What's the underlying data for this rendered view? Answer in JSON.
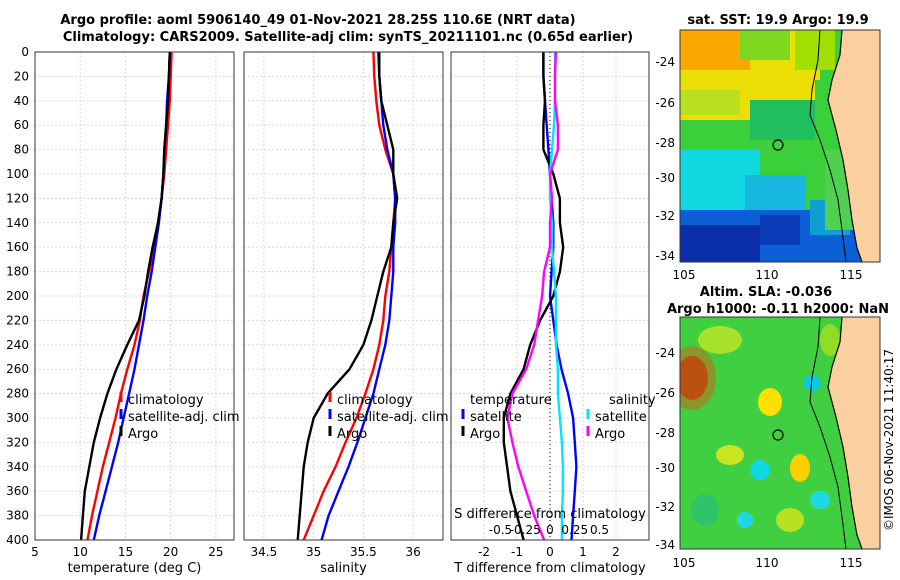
{
  "title": {
    "line1": "Argo profile: aoml 5906140_49 01-Nov-2021 28.25S 110.6E (NRT data)",
    "line2": "Climatology: CARS2009. Satellite-adj clim: synTS_20211101.nc (0.65d earlier)"
  },
  "credit": "©IMOS 06-Nov-2021 11:40:17",
  "colors": {
    "climatology": "#ff0000",
    "satellite": "#0000ff",
    "argo": "#000000",
    "satellite_salinity": "#00e5ff",
    "argo_salinity": "#ff00ff",
    "zero_line": "#000000"
  },
  "chart_data": [
    {
      "type": "line",
      "xlabel": "temperature (deg C)",
      "ylabel": "",
      "xlim": [
        5,
        27
      ],
      "ylim": [
        0,
        400
      ],
      "y_reversed": true,
      "xticks": [
        5,
        10,
        15,
        20,
        25
      ],
      "xtick_labels": [
        "5",
        "10",
        "15",
        "20",
        "25"
      ],
      "yticks": [
        0,
        20,
        40,
        60,
        80,
        100,
        120,
        140,
        160,
        180,
        200,
        220,
        240,
        260,
        280,
        300,
        320,
        340,
        360,
        380,
        400
      ],
      "ytick_labels": [
        "0",
        "20",
        "40",
        "60",
        "80",
        "100",
        "120",
        "140",
        "160",
        "180",
        "200",
        "220",
        "240",
        "260",
        "280",
        "300",
        "320",
        "340",
        "360",
        "380",
        "400"
      ],
      "legend": {
        "location": "center-right",
        "entries": [
          "climatology",
          "satellite-adj. clim",
          "Argo"
        ]
      },
      "series": [
        {
          "name": "climatology",
          "x": [
            20.1,
            20.0,
            19.9,
            19.7,
            19.5,
            19.3,
            19.0,
            18.6,
            18.1,
            17.6,
            17.0,
            16.6,
            16.0,
            15.2,
            14.5,
            13.9,
            13.2,
            12.5,
            11.9,
            11.3,
            10.8
          ],
          "y": [
            0,
            20,
            40,
            60,
            80,
            100,
            120,
            140,
            160,
            180,
            200,
            220,
            240,
            260,
            280,
            300,
            320,
            340,
            360,
            380,
            400
          ]
        },
        {
          "name": "satellite-adj. clim",
          "x": [
            19.9,
            19.8,
            19.6,
            19.5,
            19.3,
            19.2,
            19.0,
            18.7,
            18.3,
            17.9,
            17.4,
            17.0,
            16.5,
            16.0,
            15.4,
            14.8,
            14.2,
            13.5,
            12.8,
            12.1,
            11.5
          ],
          "y": [
            0,
            20,
            40,
            60,
            80,
            100,
            120,
            140,
            160,
            180,
            200,
            220,
            240,
            260,
            280,
            300,
            320,
            340,
            360,
            380,
            400
          ]
        },
        {
          "name": "Argo",
          "x": [
            19.9,
            19.8,
            19.7,
            19.5,
            19.3,
            19.2,
            19.0,
            18.6,
            18.0,
            17.5,
            17.1,
            16.5,
            15.2,
            14.0,
            13.0,
            12.2,
            11.5,
            11.0,
            10.5,
            10.3,
            10.1
          ],
          "y": [
            0,
            20,
            40,
            60,
            80,
            100,
            120,
            140,
            160,
            180,
            200,
            220,
            240,
            260,
            280,
            300,
            320,
            340,
            360,
            380,
            400
          ]
        }
      ]
    },
    {
      "type": "line",
      "xlabel": "salinity",
      "xlim": [
        34.3,
        36.3
      ],
      "ylim": [
        0,
        400
      ],
      "y_reversed": true,
      "xticks": [
        34.5,
        35,
        35.5,
        36
      ],
      "xtick_labels": [
        "34.5",
        "35",
        "35.5",
        "36"
      ],
      "legend": {
        "location": "center-right",
        "entries": [
          "climatology",
          "satellite-adj. clim",
          "Argo"
        ]
      },
      "series": [
        {
          "name": "climatology",
          "x": [
            35.6,
            35.61,
            35.63,
            35.66,
            35.72,
            35.8,
            35.82,
            35.8,
            35.78,
            35.76,
            35.72,
            35.7,
            35.66,
            35.6,
            35.52,
            35.43,
            35.32,
            35.22,
            35.1,
            35.0,
            34.9
          ],
          "y": [
            0,
            20,
            40,
            60,
            80,
            100,
            120,
            140,
            160,
            180,
            200,
            220,
            240,
            260,
            280,
            300,
            320,
            340,
            360,
            380,
            400
          ]
        },
        {
          "name": "satellite-adj. clim",
          "x": [
            35.65,
            35.66,
            35.68,
            35.7,
            35.74,
            35.8,
            35.82,
            35.82,
            35.8,
            35.8,
            35.78,
            35.76,
            35.72,
            35.66,
            35.6,
            35.52,
            35.44,
            35.35,
            35.25,
            35.15,
            35.08
          ],
          "y": [
            0,
            20,
            40,
            60,
            80,
            100,
            120,
            140,
            160,
            180,
            200,
            220,
            240,
            260,
            280,
            300,
            320,
            340,
            360,
            380,
            400
          ]
        },
        {
          "name": "Argo",
          "x": [
            35.66,
            35.66,
            35.68,
            35.74,
            35.8,
            35.8,
            35.84,
            35.8,
            35.78,
            35.7,
            35.64,
            35.58,
            35.5,
            35.36,
            35.14,
            35.0,
            34.94,
            34.9,
            34.88,
            34.86,
            34.84
          ],
          "y": [
            0,
            20,
            40,
            60,
            80,
            100,
            120,
            140,
            160,
            180,
            200,
            220,
            240,
            260,
            280,
            300,
            320,
            340,
            360,
            380,
            400
          ]
        }
      ]
    },
    {
      "type": "line",
      "xlabel": "T difference from climatology",
      "xlabel_top": "S difference from climatology",
      "xlim": [
        -3,
        3
      ],
      "ylim": [
        0,
        400
      ],
      "y_reversed": true,
      "xticks": [
        -2,
        -1,
        0,
        1,
        2
      ],
      "xtick_labels": [
        "-2",
        "-1",
        "0",
        "1",
        "2"
      ],
      "top_ticks": [
        -0.5,
        -0.25,
        0,
        0.25,
        0.5
      ],
      "top_tick_labels": [
        "-0.5",
        "-0.25",
        "0",
        "0.25",
        "0.5"
      ],
      "legend": {
        "location": "center",
        "temperature_heading": "temperature",
        "salinity_heading": "salinity",
        "entries": [
          "satellite",
          "Argo",
          "satellite",
          "Argo"
        ]
      },
      "series": [
        {
          "name": "temperature satellite",
          "x": [
            -0.2,
            -0.2,
            -0.15,
            -0.1,
            -0.05,
            0.0,
            0.05,
            0.1,
            0.1,
            0.05,
            0.0,
            0.1,
            0.2,
            0.35,
            0.55,
            0.7,
            0.75,
            0.8,
            0.75,
            0.7,
            0.65
          ],
          "y": [
            0,
            20,
            40,
            60,
            80,
            100,
            120,
            140,
            160,
            180,
            200,
            220,
            240,
            260,
            280,
            300,
            320,
            340,
            360,
            380,
            400
          ]
        },
        {
          "name": "temperature Argo",
          "x": [
            -0.2,
            -0.2,
            -0.15,
            -0.2,
            -0.2,
            0.1,
            0.3,
            0.3,
            0.4,
            0.3,
            0.1,
            -0.3,
            -0.6,
            -0.8,
            -1.2,
            -1.4,
            -1.4,
            -1.3,
            -1.2,
            -1.0,
            -0.8
          ],
          "y": [
            0,
            20,
            40,
            60,
            80,
            100,
            120,
            140,
            160,
            180,
            200,
            220,
            240,
            260,
            280,
            300,
            320,
            340,
            360,
            380,
            400
          ]
        },
        {
          "name": "salinity satellite",
          "x": [
            0.05,
            0.05,
            0.05,
            0.04,
            0.02,
            0.0,
            0.0,
            0.02,
            0.02,
            0.04,
            0.06,
            0.06,
            0.06,
            0.08,
            0.08,
            0.1,
            0.12,
            0.13,
            0.13,
            0.12,
            0.12
          ],
          "y": [
            0,
            20,
            40,
            60,
            80,
            100,
            120,
            140,
            160,
            180,
            200,
            220,
            240,
            260,
            280,
            300,
            320,
            340,
            360,
            380,
            400
          ]
        },
        {
          "name": "salinity Argo",
          "x": [
            0.06,
            0.05,
            0.05,
            0.08,
            0.08,
            0.0,
            0.02,
            0.0,
            0.0,
            -0.06,
            -0.08,
            -0.12,
            -0.16,
            -0.24,
            -0.38,
            -0.43,
            -0.38,
            -0.32,
            -0.24,
            -0.16,
            -0.06
          ],
          "y": [
            0,
            20,
            40,
            60,
            80,
            100,
            120,
            140,
            160,
            180,
            200,
            220,
            240,
            260,
            280,
            300,
            320,
            340,
            360,
            380,
            400
          ]
        }
      ]
    },
    {
      "type": "heatmap",
      "title": "sat. SST: 19.9 Argo: 19.9",
      "xlim": [
        104.5,
        116.5
      ],
      "ylim": [
        -34.2,
        -22.8
      ],
      "xticks": [
        105,
        110,
        115
      ],
      "xtick_labels": [
        "105",
        "110",
        "115"
      ],
      "yticks": [
        -24,
        -26,
        -28,
        -30,
        -32,
        -34
      ],
      "ytick_labels": [
        "-24",
        "-26",
        "-28",
        "-30",
        "-32",
        "-34"
      ],
      "marker": {
        "lon": 110.6,
        "lat": -28.25
      }
    },
    {
      "type": "heatmap",
      "title": "Altim. SLA: -0.036",
      "subtitle": "Argo h1000: -0.11 h2000: NaN",
      "xlim": [
        104.5,
        116.5
      ],
      "ylim": [
        -34.2,
        -22.8
      ],
      "xticks": [
        105,
        110,
        115
      ],
      "xtick_labels": [
        "105",
        "110",
        "115"
      ],
      "yticks": [
        -24,
        -26,
        -28,
        -30,
        -32,
        -34
      ],
      "ytick_labels": [
        "-24",
        "-26",
        "-28",
        "-30",
        "-32",
        "-34"
      ],
      "marker": {
        "lon": 110.6,
        "lat": -28.25
      }
    }
  ]
}
